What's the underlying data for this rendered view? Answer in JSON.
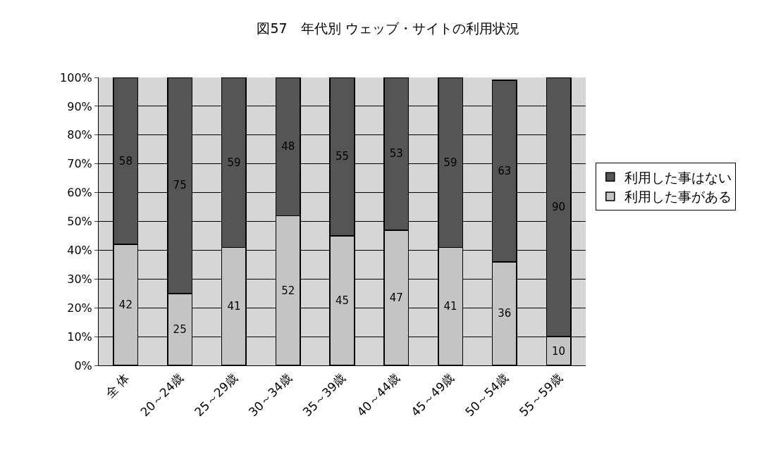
{
  "chart_data": {
    "type": "bar",
    "title": "図57　年代別 ウェッブ・サイトの利用状況",
    "stacked": true,
    "categories": [
      "全 体",
      "20～24歳",
      "25～29歳",
      "30～34歳",
      "35～39歳",
      "40～44歳",
      "45～49歳",
      "50～54歳",
      "55～59歳"
    ],
    "series": [
      {
        "name": "利用した事がある",
        "color": "#c4c4c4",
        "values": [
          42,
          25,
          41,
          52,
          45,
          47,
          41,
          36,
          10
        ]
      },
      {
        "name": "利用した事はない",
        "color": "#555555",
        "values": [
          58,
          75,
          59,
          48,
          55,
          53,
          59,
          63,
          90
        ]
      }
    ],
    "ylim": [
      0,
      100
    ],
    "yticks": [
      {
        "value": 0,
        "label": "0%"
      },
      {
        "value": 10,
        "label": "10%"
      },
      {
        "value": 20,
        "label": "20%"
      },
      {
        "value": 30,
        "label": "30%"
      },
      {
        "value": 40,
        "label": "40%"
      },
      {
        "value": 50,
        "label": "50%"
      },
      {
        "value": 60,
        "label": "60%"
      },
      {
        "value": 70,
        "label": "70%"
      },
      {
        "value": 80,
        "label": "80%"
      },
      {
        "value": 90,
        "label": "90%"
      },
      {
        "value": 100,
        "label": "100%"
      }
    ],
    "grid": "y",
    "legend": "right",
    "data_labels": true
  }
}
